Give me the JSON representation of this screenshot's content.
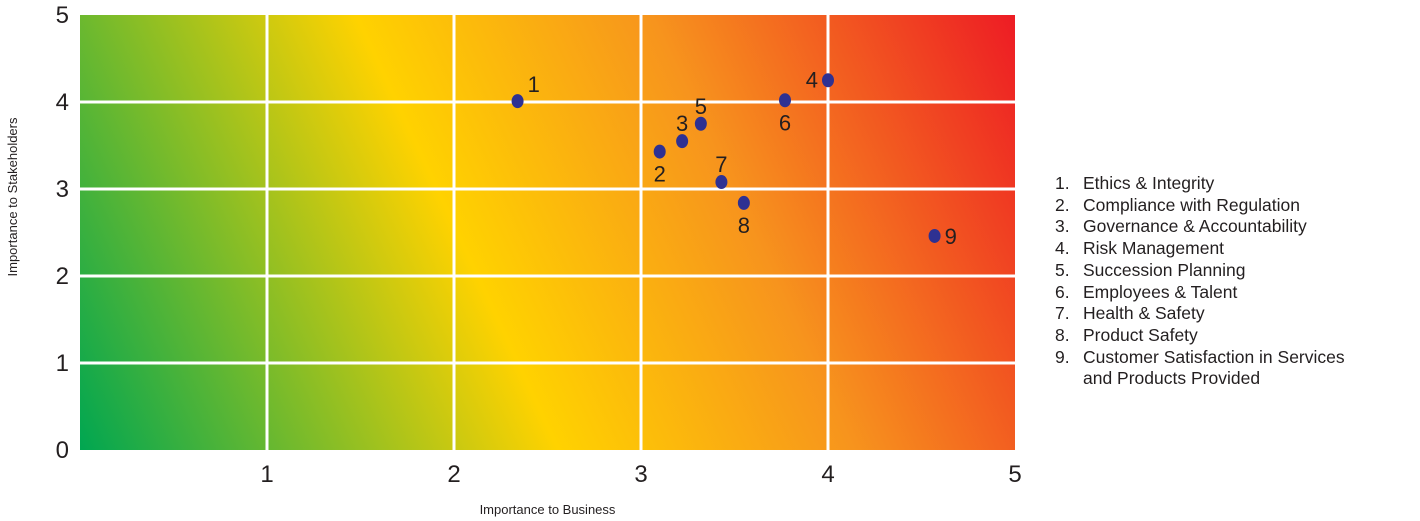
{
  "chart_data": {
    "type": "scatter",
    "title": "",
    "xlabel": "Importance to Business",
    "ylabel": "Importance to Stakeholders",
    "xlim": [
      0,
      5
    ],
    "ylim": [
      0,
      5
    ],
    "x_ticks": [
      "1",
      "2",
      "3",
      "4",
      "5"
    ],
    "y_ticks": [
      "0",
      "1",
      "2",
      "3",
      "4",
      "5"
    ],
    "grid": true,
    "background": "diagonal gradient from green (low) through yellow to red (high)",
    "gradient_colors": [
      "#00a651",
      "#ffd200",
      "#f7941d",
      "#ed1c24"
    ],
    "marker_color": "#2e3192",
    "grid_color": "#ffffff",
    "points": [
      {
        "label": "1",
        "x": 2.34,
        "y": 4.01,
        "label_pos": "above-right"
      },
      {
        "label": "2",
        "x": 3.1,
        "y": 3.43,
        "label_pos": "below"
      },
      {
        "label": "3",
        "x": 3.22,
        "y": 3.55,
        "label_pos": "above"
      },
      {
        "label": "4",
        "x": 4.0,
        "y": 4.25,
        "label_pos": "left"
      },
      {
        "label": "5",
        "x": 3.32,
        "y": 3.75,
        "label_pos": "above"
      },
      {
        "label": "6",
        "x": 3.77,
        "y": 4.02,
        "label_pos": "below"
      },
      {
        "label": "7",
        "x": 3.43,
        "y": 3.08,
        "label_pos": "above"
      },
      {
        "label": "8",
        "x": 3.55,
        "y": 2.84,
        "label_pos": "below"
      },
      {
        "label": "9",
        "x": 4.57,
        "y": 2.46,
        "label_pos": "right"
      }
    ],
    "legend_position": "right"
  },
  "legend": {
    "items": [
      {
        "num": "1.",
        "text": "Ethics & Integrity"
      },
      {
        "num": "2.",
        "text": "Compliance with Regulation"
      },
      {
        "num": "3.",
        "text": "Governance & Accountability"
      },
      {
        "num": "4.",
        "text": "Risk Management"
      },
      {
        "num": "5.",
        "text": "Succession Planning"
      },
      {
        "num": "6.",
        "text": "Employees & Talent"
      },
      {
        "num": "7.",
        "text": "Health & Safety"
      },
      {
        "num": "8.",
        "text": "Product Safety"
      },
      {
        "num": "9.",
        "text": "Customer Satisfaction in Services\nand Products Provided"
      }
    ]
  }
}
